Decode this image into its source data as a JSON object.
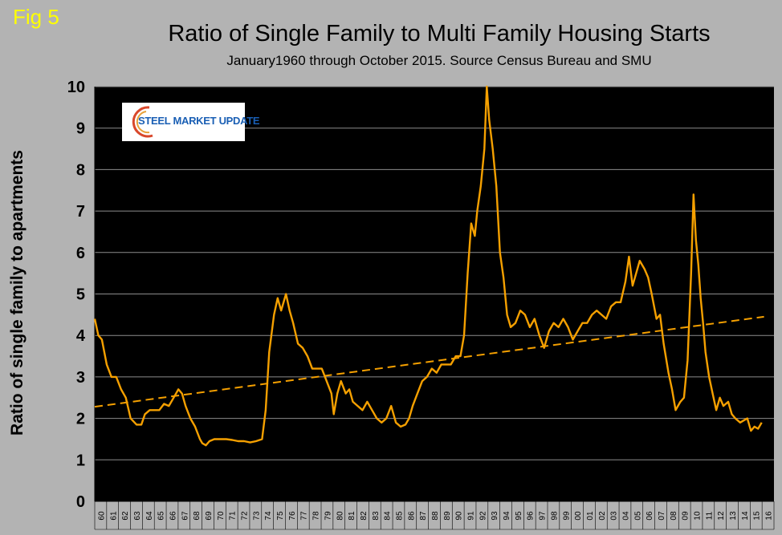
{
  "figure_label": "Fig 5",
  "logo": {
    "text": "STEEL MARKET UPDATE"
  },
  "chart_data": {
    "type": "line",
    "title": "Ratio of Single Family to Multi Family Housing Starts",
    "subtitle": "January1960 through October 2015. Source Census Bureau and SMU",
    "xlabel": "",
    "ylabel": "Ratio of single family to apartments",
    "ylim": [
      0,
      10
    ],
    "y_ticks": [
      "0",
      "1",
      "2",
      "3",
      "4",
      "5",
      "6",
      "7",
      "8",
      "9",
      "10"
    ],
    "x_ticks": [
      "60",
      "61",
      "62",
      "63",
      "64",
      "65",
      "66",
      "67",
      "68",
      "69",
      "70",
      "71",
      "72",
      "73",
      "74",
      "75",
      "76",
      "77",
      "78",
      "79",
      "80",
      "81",
      "82",
      "83",
      "84",
      "85",
      "86",
      "87",
      "88",
      "89",
      "90",
      "91",
      "92",
      "93",
      "94",
      "95",
      "96",
      "97",
      "98",
      "99",
      "00",
      "01",
      "02",
      "03",
      "04",
      "05",
      "06",
      "07",
      "08",
      "09",
      "10",
      "11",
      "12",
      "13",
      "14",
      "15",
      "16"
    ],
    "grid": true,
    "series": [
      {
        "type": "line",
        "color": "#f5a000",
        "points": [
          [
            1960.0,
            4.4
          ],
          [
            1960.3,
            4.0
          ],
          [
            1960.6,
            3.9
          ],
          [
            1961.0,
            3.3
          ],
          [
            1961.4,
            3.0
          ],
          [
            1961.8,
            3.0
          ],
          [
            1962.2,
            2.7
          ],
          [
            1962.6,
            2.5
          ],
          [
            1963.0,
            2.0
          ],
          [
            1963.5,
            1.85
          ],
          [
            1963.9,
            1.85
          ],
          [
            1964.2,
            2.1
          ],
          [
            1964.6,
            2.2
          ],
          [
            1965.0,
            2.2
          ],
          [
            1965.4,
            2.2
          ],
          [
            1965.8,
            2.35
          ],
          [
            1966.2,
            2.3
          ],
          [
            1966.6,
            2.5
          ],
          [
            1967.0,
            2.7
          ],
          [
            1967.3,
            2.6
          ],
          [
            1967.6,
            2.3
          ],
          [
            1968.0,
            2.0
          ],
          [
            1968.4,
            1.8
          ],
          [
            1968.8,
            1.5
          ],
          [
            1969.0,
            1.4
          ],
          [
            1969.3,
            1.35
          ],
          [
            1969.6,
            1.45
          ],
          [
            1970.0,
            1.5
          ],
          [
            1970.5,
            1.5
          ],
          [
            1971.0,
            1.5
          ],
          [
            1971.5,
            1.48
          ],
          [
            1972.0,
            1.45
          ],
          [
            1972.5,
            1.45
          ],
          [
            1973.0,
            1.42
          ],
          [
            1973.5,
            1.45
          ],
          [
            1974.0,
            1.5
          ],
          [
            1974.3,
            2.2
          ],
          [
            1974.6,
            3.6
          ],
          [
            1975.0,
            4.5
          ],
          [
            1975.3,
            4.9
          ],
          [
            1975.6,
            4.6
          ],
          [
            1976.0,
            5.0
          ],
          [
            1976.3,
            4.6
          ],
          [
            1976.6,
            4.3
          ],
          [
            1977.0,
            3.8
          ],
          [
            1977.4,
            3.7
          ],
          [
            1977.8,
            3.5
          ],
          [
            1978.2,
            3.2
          ],
          [
            1978.6,
            3.2
          ],
          [
            1979.0,
            3.2
          ],
          [
            1979.4,
            2.9
          ],
          [
            1979.8,
            2.6
          ],
          [
            1980.0,
            2.1
          ],
          [
            1980.3,
            2.6
          ],
          [
            1980.6,
            2.9
          ],
          [
            1981.0,
            2.6
          ],
          [
            1981.3,
            2.7
          ],
          [
            1981.6,
            2.4
          ],
          [
            1982.0,
            2.3
          ],
          [
            1982.4,
            2.2
          ],
          [
            1982.8,
            2.4
          ],
          [
            1983.2,
            2.2
          ],
          [
            1983.6,
            2.0
          ],
          [
            1984.0,
            1.9
          ],
          [
            1984.4,
            2.0
          ],
          [
            1984.8,
            2.3
          ],
          [
            1985.2,
            1.9
          ],
          [
            1985.6,
            1.8
          ],
          [
            1986.0,
            1.85
          ],
          [
            1986.3,
            2.0
          ],
          [
            1986.6,
            2.3
          ],
          [
            1987.0,
            2.6
          ],
          [
            1987.4,
            2.9
          ],
          [
            1987.8,
            3.0
          ],
          [
            1988.2,
            3.2
          ],
          [
            1988.6,
            3.1
          ],
          [
            1989.0,
            3.3
          ],
          [
            1989.4,
            3.3
          ],
          [
            1989.8,
            3.3
          ],
          [
            1990.2,
            3.5
          ],
          [
            1990.6,
            3.5
          ],
          [
            1990.9,
            4.0
          ],
          [
            1991.2,
            5.5
          ],
          [
            1991.5,
            6.7
          ],
          [
            1991.8,
            6.4
          ],
          [
            1992.0,
            7.0
          ],
          [
            1992.3,
            7.6
          ],
          [
            1992.6,
            8.5
          ],
          [
            1992.8,
            10.0
          ],
          [
            1993.0,
            9.2
          ],
          [
            1993.3,
            8.5
          ],
          [
            1993.6,
            7.6
          ],
          [
            1993.9,
            6.0
          ],
          [
            1994.2,
            5.4
          ],
          [
            1994.5,
            4.5
          ],
          [
            1994.8,
            4.2
          ],
          [
            1995.2,
            4.3
          ],
          [
            1995.6,
            4.6
          ],
          [
            1996.0,
            4.5
          ],
          [
            1996.4,
            4.2
          ],
          [
            1996.8,
            4.4
          ],
          [
            1997.2,
            4.0
          ],
          [
            1997.6,
            3.7
          ],
          [
            1998.0,
            4.1
          ],
          [
            1998.4,
            4.3
          ],
          [
            1998.8,
            4.2
          ],
          [
            1999.2,
            4.4
          ],
          [
            1999.6,
            4.2
          ],
          [
            2000.0,
            3.9
          ],
          [
            2000.4,
            4.1
          ],
          [
            2000.8,
            4.3
          ],
          [
            2001.2,
            4.3
          ],
          [
            2001.6,
            4.5
          ],
          [
            2002.0,
            4.6
          ],
          [
            2002.4,
            4.5
          ],
          [
            2002.8,
            4.4
          ],
          [
            2003.2,
            4.7
          ],
          [
            2003.6,
            4.8
          ],
          [
            2004.0,
            4.8
          ],
          [
            2004.4,
            5.3
          ],
          [
            2004.7,
            5.9
          ],
          [
            2005.0,
            5.2
          ],
          [
            2005.3,
            5.5
          ],
          [
            2005.6,
            5.8
          ],
          [
            2006.0,
            5.6
          ],
          [
            2006.3,
            5.4
          ],
          [
            2006.6,
            5.0
          ],
          [
            2007.0,
            4.4
          ],
          [
            2007.3,
            4.5
          ],
          [
            2007.6,
            3.8
          ],
          [
            2008.0,
            3.1
          ],
          [
            2008.3,
            2.7
          ],
          [
            2008.6,
            2.2
          ],
          [
            2009.0,
            2.4
          ],
          [
            2009.3,
            2.5
          ],
          [
            2009.6,
            3.4
          ],
          [
            2009.9,
            5.5
          ],
          [
            2010.1,
            7.4
          ],
          [
            2010.3,
            6.3
          ],
          [
            2010.5,
            5.7
          ],
          [
            2010.7,
            4.9
          ],
          [
            2010.9,
            4.3
          ],
          [
            2011.1,
            3.6
          ],
          [
            2011.4,
            3.0
          ],
          [
            2011.7,
            2.6
          ],
          [
            2012.0,
            2.2
          ],
          [
            2012.3,
            2.5
          ],
          [
            2012.6,
            2.3
          ],
          [
            2013.0,
            2.4
          ],
          [
            2013.3,
            2.1
          ],
          [
            2013.6,
            2.0
          ],
          [
            2014.0,
            1.9
          ],
          [
            2014.3,
            1.95
          ],
          [
            2014.6,
            2.0
          ],
          [
            2014.9,
            1.7
          ],
          [
            2015.2,
            1.8
          ],
          [
            2015.5,
            1.75
          ],
          [
            2015.8,
            1.9
          ]
        ]
      },
      {
        "type": "trendline",
        "style": "dashed",
        "color": "#f5a000",
        "points": [
          [
            1960.0,
            2.28
          ],
          [
            2016.0,
            4.45
          ]
        ]
      }
    ]
  }
}
